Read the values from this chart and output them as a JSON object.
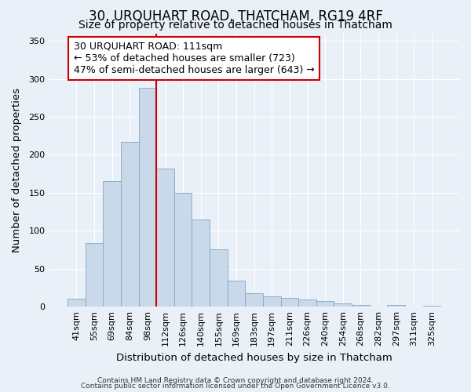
{
  "title": "30, URQUHART ROAD, THATCHAM, RG19 4RF",
  "subtitle": "Size of property relative to detached houses in Thatcham",
  "xlabel": "Distribution of detached houses by size in Thatcham",
  "ylabel": "Number of detached properties",
  "categories": [
    "41sqm",
    "55sqm",
    "69sqm",
    "84sqm",
    "98sqm",
    "112sqm",
    "126sqm",
    "140sqm",
    "155sqm",
    "169sqm",
    "183sqm",
    "197sqm",
    "211sqm",
    "226sqm",
    "240sqm",
    "254sqm",
    "268sqm",
    "282sqm",
    "297sqm",
    "311sqm",
    "325sqm"
  ],
  "values": [
    11,
    84,
    165,
    217,
    288,
    182,
    150,
    115,
    76,
    34,
    18,
    14,
    12,
    9,
    7,
    4,
    2,
    0,
    2,
    0,
    1
  ],
  "bar_color": "#c9d9ea",
  "bar_edge_color": "#7fa8c9",
  "marker_color": "#cc0000",
  "annotation_text": "30 URQUHART ROAD: 111sqm\n← 53% of detached houses are smaller (723)\n47% of semi-detached houses are larger (643) →",
  "annotation_box_color": "#ffffff",
  "annotation_box_edge": "#cc0000",
  "ylim": [
    0,
    360
  ],
  "yticks": [
    0,
    50,
    100,
    150,
    200,
    250,
    300,
    350
  ],
  "footer1": "Contains HM Land Registry data © Crown copyright and database right 2024.",
  "footer2": "Contains public sector information licensed under the Open Government Licence v3.0.",
  "bg_color": "#eaf0f8",
  "plot_bg_color": "#eaf0f8",
  "title_fontsize": 12,
  "subtitle_fontsize": 10,
  "axis_label_fontsize": 9.5,
  "tick_fontsize": 8,
  "annotation_fontsize": 9,
  "marker_bar_index": 4
}
